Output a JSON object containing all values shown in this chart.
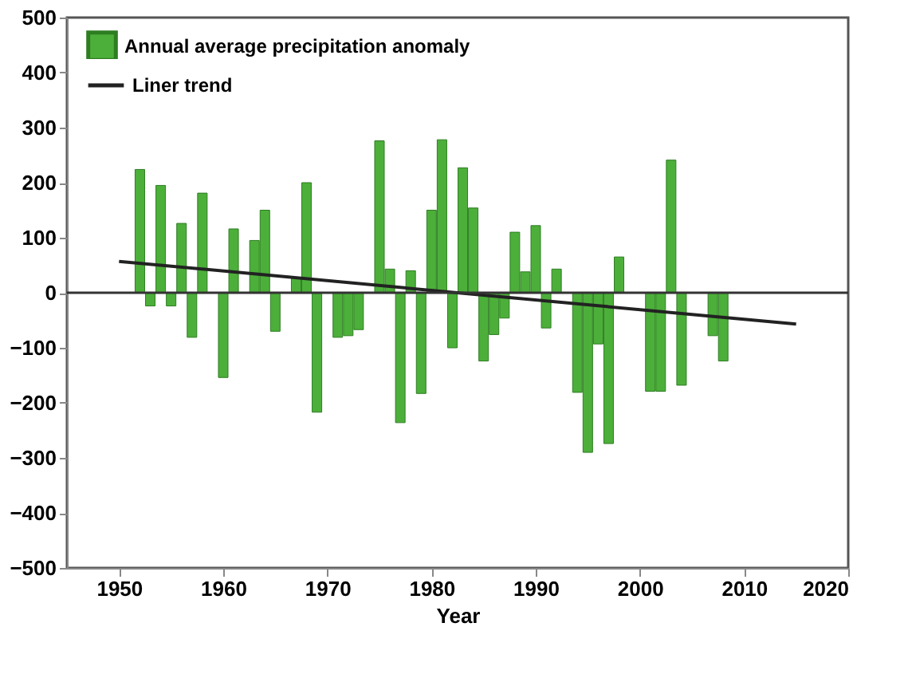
{
  "chart_data": {
    "type": "bar",
    "xlabel": "Year",
    "xlim": [
      1945,
      2020
    ],
    "xticks": [
      1950,
      1960,
      1970,
      1980,
      1990,
      2000,
      2010,
      2020
    ],
    "ylim": [
      -500,
      500
    ],
    "yticks": [
      -500,
      -400,
      -300,
      -200,
      -100,
      0,
      100,
      200,
      300,
      400,
      500
    ],
    "grid": false,
    "legend": "top left",
    "series": [
      {
        "name": "Annual average precipitation anomaly",
        "color": "#4caf3a",
        "x": [
          1952,
          1953,
          1954,
          1955,
          1956,
          1957,
          1958,
          1960,
          1961,
          1963,
          1964,
          1965,
          1967,
          1968,
          1969,
          1971,
          1972,
          1973,
          1975,
          1976,
          1977,
          1978,
          1979,
          1980,
          1981,
          1982,
          1983,
          1984,
          1985,
          1986,
          1987,
          1988,
          1989,
          1990,
          1991,
          1992,
          1994,
          1995,
          1996,
          1997,
          1998,
          2001,
          2002,
          2003,
          2004,
          2007,
          2008
        ],
        "values": [
          224,
          -24,
          195,
          -24,
          126,
          -81,
          181,
          -154,
          116,
          95,
          150,
          -70,
          28,
          200,
          -217,
          -81,
          -78,
          -67,
          276,
          43,
          -236,
          40,
          -183,
          150,
          278,
          -100,
          227,
          154,
          -124,
          -76,
          -46,
          110,
          38,
          122,
          -64,
          43,
          -181,
          -290,
          -93,
          -274,
          65,
          -179,
          -179,
          241,
          -168,
          -78,
          -124
        ]
      },
      {
        "name": "Liner trend",
        "type": "line",
        "color": "#222222",
        "x": [
          1950,
          2015
        ],
        "values": [
          57,
          -57
        ]
      }
    ],
    "ref_lines": [
      {
        "axis": "y",
        "value": 0,
        "color": "#333333"
      }
    ]
  }
}
